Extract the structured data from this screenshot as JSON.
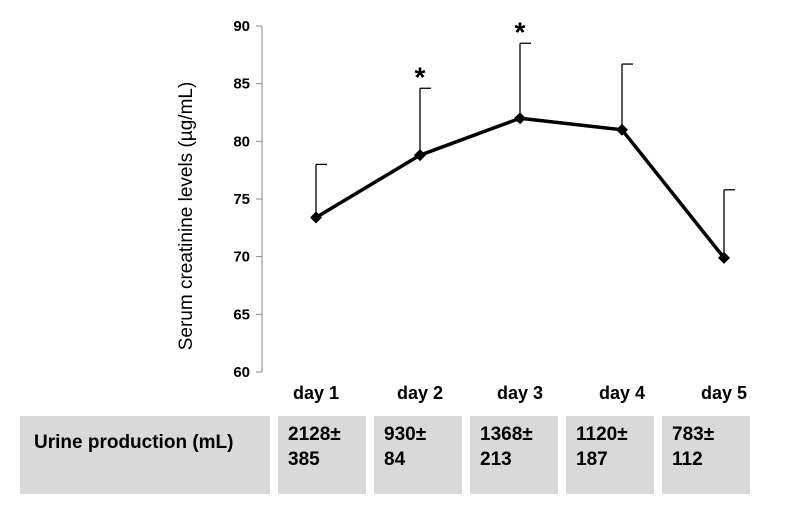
{
  "chart_data": {
    "type": "line",
    "categories": [
      "day 1",
      "day 2",
      "day 3",
      "day 4",
      "day 5"
    ],
    "series": [
      {
        "values": [
          73.4,
          78.8,
          82.0,
          81.0,
          69.9
        ],
        "error_upper": [
          78.0,
          84.6,
          88.5,
          86.7,
          75.8
        ]
      }
    ],
    "significance": [
      "",
      "*",
      "*",
      "",
      ""
    ],
    "ylabel": "Serum creatinine levels (µg/mL)",
    "ylim": [
      60,
      90
    ],
    "yticks": [
      "60",
      "65",
      "70",
      "75",
      "80",
      "85",
      "90"
    ],
    "grid": false,
    "legend": "none"
  },
  "table": {
    "header": "Urine production (mL)",
    "values": [
      {
        "mean": "2128±",
        "sd": "385"
      },
      {
        "mean": "930±",
        "sd": "84"
      },
      {
        "mean": "1368±",
        "sd": "213"
      },
      {
        "mean": "1120±",
        "sd": "187"
      },
      {
        "mean": "783±",
        "sd": "112"
      }
    ]
  }
}
